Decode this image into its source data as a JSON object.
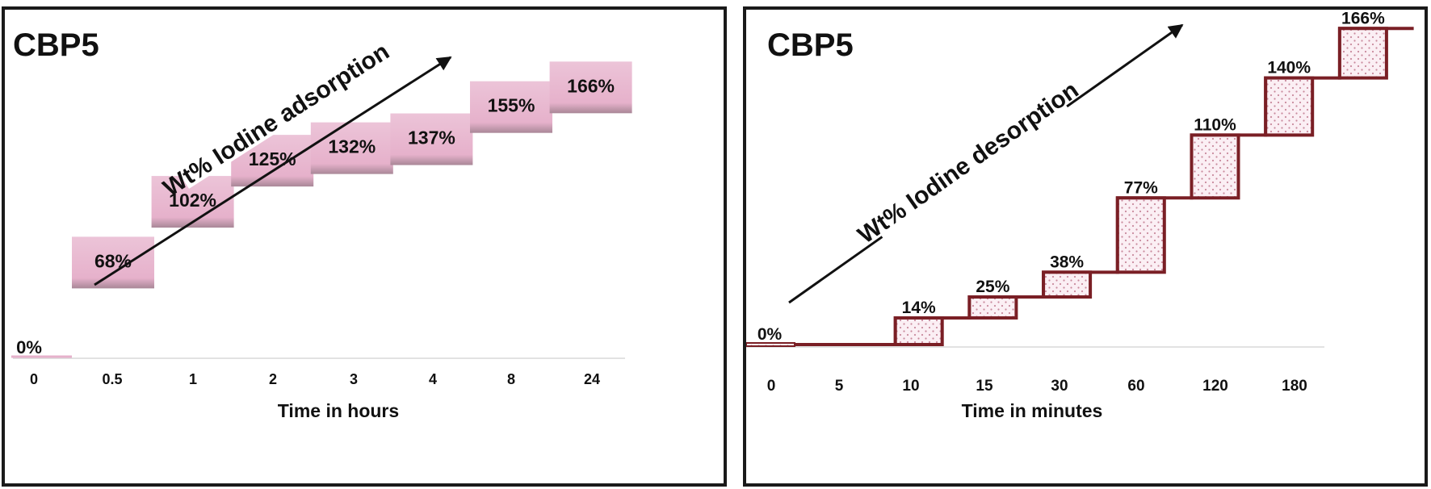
{
  "chart_data": [
    {
      "type": "bar",
      "title": "CBP5",
      "xlabel": "Time in hours",
      "ylabel": "",
      "annotation": "Wt% Iodine adsorption",
      "categories": [
        "0",
        "0.5",
        "1",
        "2",
        "3",
        "4",
        "8",
        "24"
      ],
      "values": [
        0,
        68,
        102,
        125,
        132,
        137,
        155,
        166
      ],
      "value_labels": [
        "0%",
        "68%",
        "102%",
        "125%",
        "132%",
        "137%",
        "155%",
        "166%"
      ],
      "style": "floating steps",
      "color": "#e8b7cf"
    },
    {
      "type": "bar",
      "title": "CBP5",
      "xlabel": "Time in minutes",
      "ylabel": "",
      "annotation": "Wt% Iodine desorption",
      "categories": [
        "0",
        "5",
        "10",
        "15",
        "30",
        "60",
        "120",
        "180"
      ],
      "values": [
        0,
        14,
        25,
        38,
        77,
        110,
        140,
        166
      ],
      "value_labels": [
        "0%",
        "14%",
        "25%",
        "38%",
        "77%",
        "110%",
        "140%",
        "166%"
      ],
      "style": "floating steps (dotted)",
      "color": "#7a1f25"
    }
  ]
}
